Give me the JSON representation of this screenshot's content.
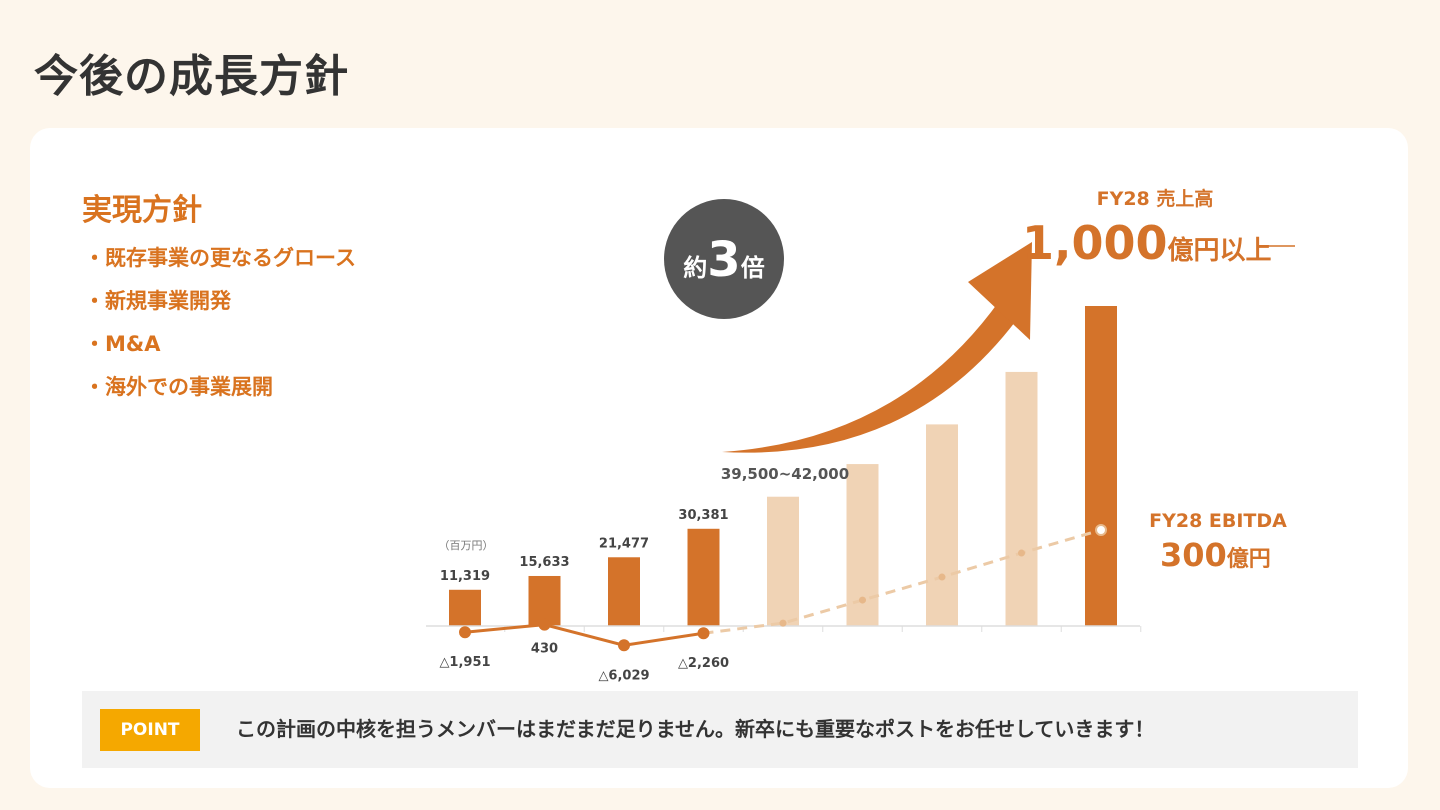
{
  "title": "今後の成長方針",
  "policy": {
    "heading": "実現方針",
    "items": [
      "既存事業の更なるグロース",
      "新規事業開発",
      "M&A",
      "海外での事業展開"
    ]
  },
  "badge": {
    "prefix": "約",
    "number": "3",
    "suffix": "倍"
  },
  "callouts": {
    "sales_label": "FY28 売上高",
    "sales_number": "1,000",
    "sales_unit": "億円以上",
    "ebitda_label": "FY28 EBITDA",
    "ebitda_number": "300",
    "ebitda_unit": "億円",
    "range_label": "39,500~42,000"
  },
  "point": {
    "badge": "POINT",
    "text": "この計画の中核を担うメンバーはまだまだ足りません。新卒にも重要なポストをお任せしていきます！"
  },
  "colors": {
    "actual": "#d4732a",
    "forecast": "#f0d3b5",
    "text_dark": "#333333",
    "badge": "#555555",
    "point": "#f5a800"
  },
  "chart_data": {
    "type": "bar",
    "unit_label": "（百万円）",
    "revenue": {
      "values": [
        11319,
        15633,
        21477,
        30381,
        40400,
        50600,
        63000,
        79400,
        100000
      ],
      "labels": [
        "11,319",
        "15,633",
        "21,477",
        "30,381",
        "",
        "",
        "",
        "",
        ""
      ],
      "forecast": [
        false,
        false,
        false,
        false,
        true,
        true,
        true,
        true,
        false
      ]
    },
    "ebitda": {
      "type": "line",
      "values": [
        -1951,
        430,
        -6029,
        -2260,
        900,
        8100,
        15300,
        22800,
        30000
      ],
      "labels": [
        "△1,951",
        "430",
        "△6,029",
        "△2,260",
        "",
        "",
        "",
        "",
        ""
      ],
      "forecast": [
        false,
        false,
        false,
        false,
        true,
        true,
        true,
        true,
        true
      ]
    },
    "growth_annotation": "約3倍"
  }
}
